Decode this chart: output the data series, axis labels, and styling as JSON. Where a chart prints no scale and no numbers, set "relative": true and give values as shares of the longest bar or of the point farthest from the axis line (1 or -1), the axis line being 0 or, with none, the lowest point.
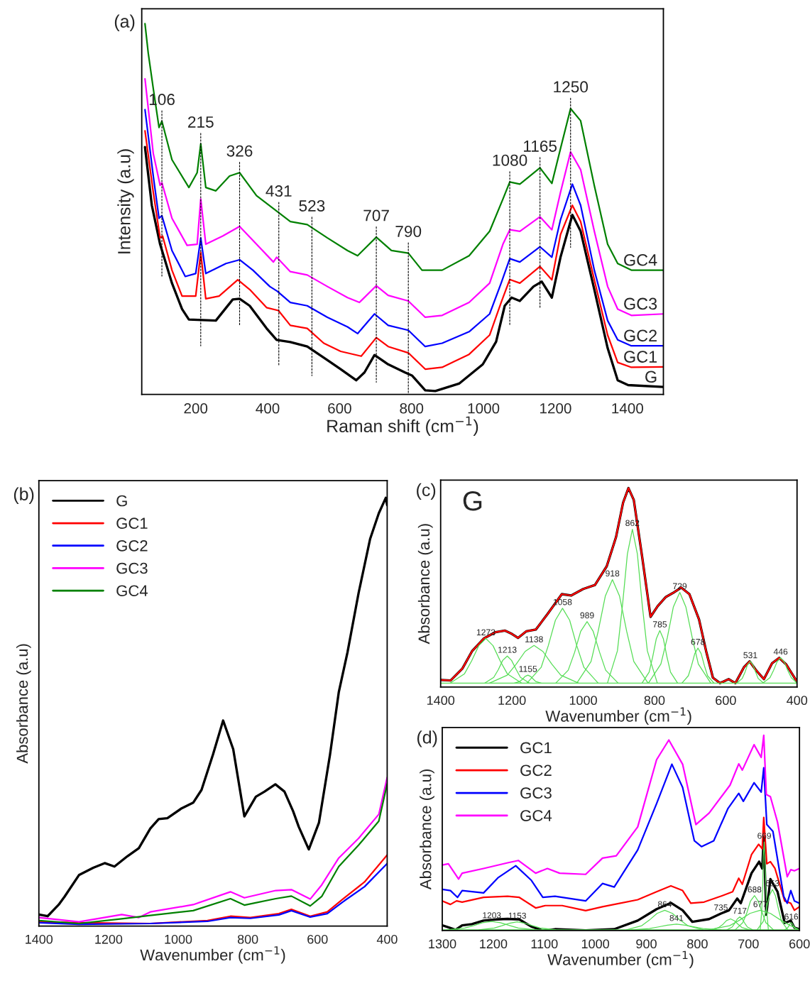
{
  "chart_data": [
    {
      "type": "line",
      "title": "(a)",
      "xlabel": "Raman shift (cm$^{−1}$)",
      "ylabel": "Intensity (a.u)",
      "relative": true,
      "tick_labels": "x",
      "xlim": [
        50,
        1500
      ],
      "xticks": [
        200,
        400,
        600,
        800,
        1000,
        1200,
        1400
      ],
      "legend": false,
      "series": [
        {
          "name": "G",
          "color": "#000000",
          "x": [
            59,
            78,
            101,
            134,
            162,
            181,
            256,
            303,
            322,
            350,
            397,
            425,
            463,
            510,
            556,
            603,
            646,
            669,
            697,
            735,
            782,
            801,
            838,
            866,
            932,
            998,
            1035,
            1059,
            1078,
            1101,
            1139,
            1162,
            1190,
            1214,
            1247,
            1270,
            1308,
            1345,
            1373,
            1402,
            1500
          ],
          "values": [
            0.667,
            0.51,
            0.405,
            0.3,
            0.23,
            0.202,
            0.199,
            0.256,
            0.258,
            0.239,
            0.178,
            0.147,
            0.141,
            0.129,
            0.099,
            0.068,
            0.038,
            0.059,
            0.106,
            0.081,
            0.059,
            0.051,
            0.011,
            0.009,
            0.029,
            0.081,
            0.142,
            0.239,
            0.261,
            0.252,
            0.291,
            0.304,
            0.261,
            0.37,
            0.484,
            0.44,
            0.283,
            0.125,
            0.038,
            0.025,
            0.02
          ]
        },
        {
          "name": "GC1",
          "color": "#ff0000",
          "x": [
            59,
            82,
            101,
            108,
            134,
            162,
            200,
            214,
            228,
            265,
            317,
            350,
            397,
            430,
            463,
            510,
            556,
            603,
            660,
            702,
            735,
            791,
            838,
            885,
            960,
            1017,
            1049,
            1073,
            1101,
            1157,
            1190,
            1214,
            1247,
            1270,
            1308,
            1345,
            1373,
            1411,
            1500
          ],
          "values": [
            0.711,
            0.545,
            0.422,
            0.427,
            0.335,
            0.265,
            0.265,
            0.383,
            0.258,
            0.265,
            0.309,
            0.283,
            0.234,
            0.226,
            0.186,
            0.178,
            0.138,
            0.116,
            0.103,
            0.153,
            0.129,
            0.112,
            0.068,
            0.073,
            0.108,
            0.16,
            0.248,
            0.31,
            0.3,
            0.345,
            0.309,
            0.431,
            0.51,
            0.466,
            0.309,
            0.16,
            0.086,
            0.073,
            0.074
          ]
        },
        {
          "name": "GC2",
          "color": "#0000ff",
          "x": [
            59,
            82,
            98,
            106,
            134,
            171,
            200,
            214,
            228,
            284,
            322,
            359,
            406,
            427,
            463,
            510,
            566,
            622,
            650,
            697,
            735,
            791,
            838,
            885,
            960,
            1017,
            1049,
            1073,
            1101,
            1157,
            1190,
            1214,
            1247,
            1270,
            1308,
            1345,
            1373,
            1411,
            1500
          ],
          "values": [
            0.768,
            0.589,
            0.475,
            0.482,
            0.388,
            0.318,
            0.326,
            0.422,
            0.326,
            0.353,
            0.363,
            0.335,
            0.291,
            0.278,
            0.248,
            0.239,
            0.208,
            0.182,
            0.164,
            0.217,
            0.186,
            0.173,
            0.129,
            0.138,
            0.169,
            0.217,
            0.3,
            0.366,
            0.357,
            0.398,
            0.37,
            0.471,
            0.567,
            0.51,
            0.335,
            0.199,
            0.147,
            0.131,
            0.131
          ]
        },
        {
          "name": "GC3",
          "color": "#ff00ff",
          "x": [
            59,
            82,
            101,
            106,
            134,
            176,
            204,
            214,
            228,
            275,
            322,
            369,
            416,
            425,
            463,
            510,
            566,
            622,
            655,
            702,
            735,
            791,
            838,
            885,
            960,
            1017,
            1054,
            1073,
            1101,
            1157,
            1190,
            1214,
            1242,
            1270,
            1308,
            1345,
            1373,
            1411,
            1500
          ],
          "values": [
            0.851,
            0.65,
            0.564,
            0.571,
            0.475,
            0.402,
            0.405,
            0.527,
            0.405,
            0.427,
            0.453,
            0.405,
            0.357,
            0.37,
            0.331,
            0.322,
            0.291,
            0.261,
            0.248,
            0.293,
            0.267,
            0.252,
            0.208,
            0.213,
            0.248,
            0.3,
            0.405,
            0.444,
            0.44,
            0.479,
            0.444,
            0.545,
            0.654,
            0.606,
            0.44,
            0.291,
            0.23,
            0.213,
            0.217
          ]
        },
        {
          "name": "GC4",
          "color": "#008000",
          "x": [
            59,
            68,
            82,
            98,
            106,
            134,
            181,
            204,
            214,
            228,
            256,
            294,
            322,
            369,
            416,
            463,
            510,
            566,
            622,
            650,
            702,
            744,
            791,
            829,
            885,
            960,
            1017,
            1054,
            1073,
            1101,
            1157,
            1190,
            1214,
            1242,
            1270,
            1308,
            1345,
            1373,
            1411,
            1500
          ],
          "values": [
            1.0,
            0.921,
            0.825,
            0.72,
            0.737,
            0.633,
            0.558,
            0.598,
            0.676,
            0.558,
            0.549,
            0.589,
            0.598,
            0.536,
            0.501,
            0.466,
            0.458,
            0.422,
            0.388,
            0.374,
            0.424,
            0.388,
            0.381,
            0.335,
            0.335,
            0.374,
            0.44,
            0.527,
            0.573,
            0.567,
            0.611,
            0.569,
            0.663,
            0.771,
            0.738,
            0.563,
            0.405,
            0.353,
            0.335,
            0.335
          ]
        }
      ],
      "annotations": [
        {
          "text": "106",
          "x": 106,
          "y": 0.737
        },
        {
          "text": "215",
          "x": 214,
          "y": 0.676
        },
        {
          "text": "326",
          "x": 322,
          "y": 0.598
        },
        {
          "text": "431",
          "x": 431,
          "y": 0.49
        },
        {
          "text": "523",
          "x": 523,
          "y": 0.45
        },
        {
          "text": "707",
          "x": 702,
          "y": 0.424
        },
        {
          "text": "790",
          "x": 791,
          "y": 0.381
        },
        {
          "text": "1080",
          "x": 1073,
          "y": 0.573
        },
        {
          "text": "1165",
          "x": 1157,
          "y": 0.611
        },
        {
          "text": "1250",
          "x": 1242,
          "y": 0.771
        }
      ]
    },
    {
      "type": "line",
      "title": "(b)",
      "xlabel": "Wavenumber (cm$^{−1}$)",
      "ylabel": "Absorbance (a.u)",
      "relative": true,
      "tick_labels": "x",
      "xlim": [
        1400,
        400
      ],
      "xticks": [
        1400,
        1200,
        1000,
        800,
        600,
        400
      ],
      "legend": "top left",
      "series": [
        {
          "name": "G",
          "color": "#000000",
          "x": [
            1400,
            1375,
            1343,
            1326,
            1285,
            1244,
            1211,
            1183,
            1146,
            1113,
            1080,
            1056,
            1031,
            990,
            957,
            933,
            900,
            871,
            842,
            810,
            777,
            752,
            721,
            695,
            670,
            654,
            625,
            596,
            564,
            539,
            514,
            482,
            449,
            424,
            404,
            400
          ],
          "values": [
            0.027,
            0.023,
            0.05,
            0.069,
            0.119,
            0.136,
            0.147,
            0.139,
            0.163,
            0.182,
            0.228,
            0.25,
            0.252,
            0.275,
            0.288,
            0.318,
            0.401,
            0.48,
            0.413,
            0.256,
            0.302,
            0.314,
            0.331,
            0.314,
            0.268,
            0.232,
            0.179,
            0.241,
            0.401,
            0.546,
            0.639,
            0.778,
            0.904,
            0.964,
            1.0,
            0.983
          ]
        },
        {
          "name": "GC1",
          "color": "#ff0000",
          "x": [
            1400,
            1285,
            1080,
            916,
            850,
            793,
            711,
            675,
            621,
            572,
            523,
            465,
            400
          ],
          "values": [
            0.01,
            0.008,
            0.006,
            0.013,
            0.023,
            0.02,
            0.029,
            0.039,
            0.023,
            0.033,
            0.066,
            0.103,
            0.166
          ]
        },
        {
          "name": "GC2",
          "color": "#0000ff",
          "x": [
            1400,
            1285,
            1080,
            916,
            850,
            793,
            711,
            675,
            621,
            572,
            523,
            465,
            400
          ],
          "values": [
            0.008,
            0.004,
            0.006,
            0.011,
            0.02,
            0.018,
            0.026,
            0.036,
            0.021,
            0.029,
            0.059,
            0.092,
            0.146
          ]
        },
        {
          "name": "GC3",
          "color": "#ff00ff",
          "x": [
            1400,
            1285,
            1162,
            1113,
            1080,
            957,
            850,
            810,
            720,
            675,
            621,
            588,
            539,
            482,
            424,
            400
          ],
          "values": [
            0.02,
            0.01,
            0.027,
            0.02,
            0.033,
            0.05,
            0.08,
            0.066,
            0.083,
            0.085,
            0.063,
            0.096,
            0.159,
            0.205,
            0.261,
            0.347
          ]
        },
        {
          "name": "GC4",
          "color": "#008000",
          "x": [
            1400,
            1285,
            1162,
            1080,
            957,
            850,
            810,
            720,
            675,
            621,
            588,
            539,
            482,
            424,
            400
          ],
          "values": [
            0.013,
            0.006,
            0.017,
            0.025,
            0.036,
            0.064,
            0.049,
            0.064,
            0.07,
            0.047,
            0.069,
            0.139,
            0.189,
            0.245,
            0.332
          ]
        }
      ]
    },
    {
      "type": "line",
      "title": "(c)",
      "xlabel": "Wavenumber (cm$^{−1}$)",
      "ylabel": "Absorbance (a.u)",
      "relative": true,
      "tick_labels": "x",
      "xlim": [
        1400,
        400
      ],
      "xticks": [
        1400,
        1200,
        1000,
        800,
        600,
        400
      ],
      "legend": false,
      "series": [
        {
          "color": "#000000",
          "x": [
            1400,
            1372,
            1339,
            1312,
            1279,
            1246,
            1220,
            1200,
            1183,
            1160,
            1133,
            1100,
            1060,
            1034,
            1000,
            967,
            934,
            908,
            888,
            873,
            858,
            835,
            811,
            791,
            768,
            748,
            725,
            702,
            675,
            655,
            636,
            616,
            592,
            573,
            549,
            533,
            516,
            493,
            470,
            450,
            430,
            400
          ],
          "values": [
            0.036,
            0.033,
            0.093,
            0.18,
            0.244,
            0.276,
            0.284,
            0.267,
            0.247,
            0.28,
            0.289,
            0.367,
            0.467,
            0.46,
            0.493,
            0.513,
            0.607,
            0.753,
            0.927,
            1.0,
            0.94,
            0.66,
            0.353,
            0.407,
            0.453,
            0.473,
            0.5,
            0.467,
            0.34,
            0.18,
            0.047,
            0.02,
            0.04,
            0.02,
            0.1,
            0.129,
            0.087,
            0.04,
            0.12,
            0.147,
            0.113,
            0.027
          ]
        },
        {
          "color": "#ff0000",
          "x": [
            1400,
            1372,
            1339,
            1312,
            1279,
            1246,
            1220,
            1200,
            1183,
            1160,
            1133,
            1100,
            1060,
            1034,
            1000,
            967,
            934,
            908,
            888,
            873,
            858,
            835,
            811,
            791,
            768,
            748,
            725,
            702,
            675,
            655,
            636,
            616,
            592,
            573,
            549,
            533,
            516,
            493,
            470,
            450,
            430,
            400
          ],
          "values": [
            0.036,
            0.033,
            0.093,
            0.18,
            0.244,
            0.276,
            0.284,
            0.267,
            0.247,
            0.28,
            0.289,
            0.367,
            0.467,
            0.46,
            0.493,
            0.513,
            0.607,
            0.753,
            0.927,
            1.0,
            0.94,
            0.66,
            0.353,
            0.407,
            0.453,
            0.473,
            0.5,
            0.467,
            0.34,
            0.18,
            0.047,
            0.02,
            0.04,
            0.02,
            0.1,
            0.129,
            0.087,
            0.04,
            0.12,
            0.147,
            0.113,
            0.027
          ]
        },
        {
          "color": "#55dd55",
          "x": [
            1400,
            400
          ],
          "values": [
            0.02,
            0.02
          ]
        },
        {
          "color": "#55dd55",
          "x": [
            1173,
            1213,
            1233,
            1253,
            1273,
            1293,
            1313,
            1333,
            1373
          ],
          "values": [
            0.02,
            0.067,
            0.132,
            0.208,
            0.244,
            0.208,
            0.132,
            0.067,
            0.02
          ]
        },
        {
          "color": "#55dd55",
          "x": [
            1151,
            1176,
            1188,
            1201,
            1213,
            1226,
            1238,
            1251,
            1276
          ],
          "values": [
            0.02,
            0.049,
            0.088,
            0.134,
            0.156,
            0.134,
            0.088,
            0.049,
            0.02
          ]
        },
        {
          "color": "#55dd55",
          "x": [
            1118,
            1133,
            1140,
            1148,
            1155,
            1163,
            1170,
            1178,
            1193
          ],
          "values": [
            0.02,
            0.028,
            0.04,
            0.054,
            0.06,
            0.054,
            0.04,
            0.028,
            0.02
          ]
        },
        {
          "color": "#55dd55",
          "x": [
            1013,
            1063,
            1088,
            1113,
            1138,
            1163,
            1188,
            1213,
            1263
          ],
          "values": [
            0.02,
            0.06,
            0.115,
            0.179,
            0.209,
            0.179,
            0.115,
            0.06,
            0.02
          ]
        },
        {
          "color": "#55dd55",
          "x": [
            958,
            998,
            1018,
            1038,
            1058,
            1078,
            1098,
            1118,
            1158
          ],
          "values": [
            0.02,
            0.099,
            0.208,
            0.336,
            0.396,
            0.336,
            0.208,
            0.099,
            0.02
          ]
        },
        {
          "color": "#55dd55",
          "x": [
            902,
            937,
            954,
            972,
            989,
            1007,
            1024,
            1042,
            1077
          ],
          "values": [
            0.02,
            0.085,
            0.175,
            0.28,
            0.329,
            0.28,
            0.175,
            0.085,
            0.02
          ]
        },
        {
          "color": "#55dd55",
          "x": [
            818,
            858,
            878,
            898,
            918,
            938,
            958,
            978,
            1018
          ],
          "values": [
            0.02,
            0.129,
            0.28,
            0.457,
            0.54,
            0.457,
            0.28,
            0.129,
            0.02
          ]
        },
        {
          "color": "#55dd55",
          "x": [
            792,
            820,
            834,
            848,
            862,
            876,
            890,
            904,
            932
          ],
          "values": [
            0.02,
            0.182,
            0.407,
            0.669,
            0.793,
            0.669,
            0.407,
            0.182,
            0.02
          ]
        },
        {
          "color": "#55dd55",
          "x": [
            735,
            755,
            765,
            775,
            785,
            795,
            805,
            815,
            835
          ],
          "values": [
            0.02,
            0.075,
            0.152,
            0.242,
            0.284,
            0.242,
            0.152,
            0.075,
            0.02
          ]
        },
        {
          "color": "#55dd55",
          "x": [
            642,
            677,
            694,
            712,
            729,
            747,
            764,
            782,
            817
          ],
          "values": [
            0.02,
            0.116,
            0.248,
            0.403,
            0.476,
            0.403,
            0.248,
            0.116,
            0.02
          ]
        },
        {
          "color": "#55dd55",
          "x": [
            633,
            651,
            660,
            669,
            678,
            687,
            696,
            705,
            723
          ],
          "values": [
            0.02,
            0.057,
            0.108,
            0.168,
            0.196,
            0.168,
            0.108,
            0.057,
            0.02
          ]
        },
        {
          "color": "#55dd55",
          "x": [
            494,
            509,
            516,
            524,
            531,
            539,
            546,
            554,
            569
          ],
          "values": [
            0.02,
            0.043,
            0.075,
            0.112,
            0.129,
            0.112,
            0.075,
            0.043,
            0.02
          ]
        },
        {
          "color": "#55dd55",
          "x": [
            400,
            416,
            426,
            436,
            446,
            456,
            466,
            476,
            496
          ],
          "values": [
            0.02,
            0.047,
            0.084,
            0.127,
            0.147,
            0.127,
            0.084,
            0.047,
            0.02
          ]
        }
      ],
      "annotations": [
        "G",
        {
          "text": "1273",
          "x": 1273,
          "y": 0.244
        },
        {
          "text": "1213",
          "x": 1213,
          "y": 0.156
        },
        {
          "text": "1138",
          "x": 1138,
          "y": 0.209
        },
        {
          "text": "1155",
          "x": 1155,
          "y": 0.06
        },
        {
          "text": "1058",
          "x": 1058,
          "y": 0.396
        },
        {
          "text": "989",
          "x": 989,
          "y": 0.329
        },
        {
          "text": "918",
          "x": 918,
          "y": 0.54
        },
        {
          "text": "862",
          "x": 862,
          "y": 0.793
        },
        {
          "text": "785",
          "x": 785,
          "y": 0.284
        },
        {
          "text": "729",
          "x": 729,
          "y": 0.476
        },
        {
          "text": "678",
          "x": 678,
          "y": 0.196
        },
        {
          "text": "531",
          "x": 531,
          "y": 0.129
        },
        {
          "text": "446",
          "x": 446,
          "y": 0.147
        }
      ]
    },
    {
      "type": "line",
      "title": "(d)",
      "xlabel": "Wavenumber (cm$^{−1}$)",
      "ylabel": "Absorbance (a.u)",
      "relative": true,
      "tick_labels": "x",
      "xlim": [
        1300,
        600
      ],
      "xticks": [
        1300,
        1200,
        1100,
        1000,
        900,
        800,
        700,
        600
      ],
      "legend": "top left",
      "series": [
        {
          "name": "GC1",
          "color": "#000000",
          "x": [
            1300,
            1286,
            1274,
            1261,
            1242,
            1219,
            1195,
            1172,
            1149,
            1126,
            1103,
            1079,
            1019,
            963,
            917,
            880,
            852,
            829,
            810,
            777,
            754,
            738,
            722,
            715,
            694,
            679,
            673,
            670,
            665,
            657,
            643,
            629,
            617,
            610,
            600
          ],
          "values": [
            0.027,
            0.015,
            0.004,
            0.027,
            0.033,
            0.051,
            0.057,
            0.06,
            0.057,
            0.021,
            0.0,
            0.007,
            0.001,
            0.007,
            0.051,
            0.11,
            0.142,
            0.104,
            0.045,
            0.059,
            0.087,
            0.104,
            0.164,
            0.14,
            0.294,
            0.353,
            0.318,
            0.478,
            0.081,
            0.264,
            0.199,
            0.039,
            0.051,
            0.015,
            0.007
          ]
        },
        {
          "name": "GC2",
          "color": "#ff0000",
          "x": [
            1300,
            1284,
            1272,
            1261,
            1219,
            1172,
            1149,
            1117,
            1098,
            1065,
            1019,
            986,
            917,
            880,
            852,
            829,
            813,
            787,
            754,
            731,
            719,
            712,
            694,
            680,
            673,
            670,
            664,
            657,
            648,
            629,
            617,
            610,
            600
          ],
          "values": [
            0.152,
            0.134,
            0.152,
            0.146,
            0.17,
            0.176,
            0.17,
            0.116,
            0.128,
            0.128,
            0.102,
            0.122,
            0.158,
            0.199,
            0.229,
            0.205,
            0.14,
            0.146,
            0.176,
            0.199,
            0.268,
            0.237,
            0.389,
            0.442,
            0.419,
            0.579,
            0.342,
            0.353,
            0.318,
            0.152,
            0.14,
            0.104,
            0.122
          ]
        },
        {
          "name": "GC3",
          "color": "#0000ff",
          "x": [
            1300,
            1284,
            1270,
            1261,
            1219,
            1191,
            1156,
            1126,
            1103,
            1079,
            1019,
            986,
            963,
            917,
            880,
            850,
            829,
            806,
            792,
            768,
            740,
            719,
            710,
            689,
            675,
            670,
            664,
            652,
            631,
            624,
            617,
            610,
            600
          ],
          "values": [
            0.211,
            0.205,
            0.17,
            0.205,
            0.193,
            0.27,
            0.332,
            0.259,
            0.17,
            0.176,
            0.152,
            0.241,
            0.223,
            0.413,
            0.65,
            0.852,
            0.733,
            0.46,
            0.43,
            0.46,
            0.626,
            0.703,
            0.662,
            0.757,
            0.709,
            0.834,
            0.543,
            0.508,
            0.176,
            0.14,
            0.205,
            0.152,
            0.14
          ]
        },
        {
          "name": "GC4",
          "color": "#ff00ff",
          "x": [
            1300,
            1288,
            1268,
            1261,
            1219,
            1172,
            1151,
            1117,
            1094,
            1070,
            1019,
            986,
            959,
            917,
            880,
            856,
            829,
            803,
            777,
            736,
            719,
            712,
            689,
            675,
            670,
            665,
            657,
            643,
            624,
            617,
            610,
            600
          ],
          "values": [
            0.336,
            0.342,
            0.264,
            0.294,
            0.318,
            0.347,
            0.359,
            0.294,
            0.318,
            0.294,
            0.288,
            0.371,
            0.383,
            0.531,
            0.875,
            0.976,
            0.852,
            0.543,
            0.602,
            0.745,
            0.854,
            0.822,
            0.952,
            0.887,
            1.0,
            0.697,
            0.686,
            0.555,
            0.276,
            0.312,
            0.306,
            0.318
          ]
        },
        {
          "color": "#55dd55",
          "x": [
            1300,
            600
          ],
          "values": [
            0.004,
            0.004
          ]
        },
        {
          "color": "#55dd55",
          "x": [
            1116,
            1151,
            1168,
            1186,
            1203,
            1221,
            1238,
            1256,
            1291
          ],
          "values": [
            0.004,
            0.013,
            0.026,
            0.04,
            0.047,
            0.04,
            0.026,
            0.013,
            0.004
          ]
        },
        {
          "color": "#55dd55",
          "x": [
            1078,
            1108,
            1123,
            1138,
            1153,
            1168,
            1183,
            1198,
            1228
          ],
          "values": [
            0.004,
            0.013,
            0.025,
            0.038,
            0.045,
            0.038,
            0.025,
            0.013,
            0.004
          ]
        },
        {
          "color": "#55dd55",
          "x": [
            789,
            819,
            834,
            849,
            864,
            879,
            894,
            909,
            939
          ],
          "values": [
            0.004,
            0.025,
            0.054,
            0.088,
            0.104,
            0.088,
            0.054,
            0.025,
            0.004
          ]
        },
        {
          "color": "#55dd55",
          "x": [
            754,
            789,
            806,
            824,
            841,
            859,
            876,
            894,
            929
          ],
          "values": [
            0.004,
            0.01,
            0.019,
            0.028,
            0.033,
            0.028,
            0.019,
            0.01,
            0.004
          ]
        },
        {
          "color": "#55dd55",
          "x": [
            698,
            713,
            720,
            728,
            735,
            743,
            750,
            758,
            773
          ],
          "values": [
            0.004,
            0.016,
            0.032,
            0.051,
            0.06,
            0.051,
            0.032,
            0.016,
            0.004
          ]
        },
        {
          "color": "#55dd55",
          "x": [
            692,
            702,
            707,
            712,
            717,
            722,
            727,
            732,
            742
          ],
          "values": [
            0.004,
            0.018,
            0.037,
            0.059,
            0.07,
            0.059,
            0.037,
            0.018,
            0.004
          ]
        },
        {
          "color": "#55dd55",
          "x": [
            651,
            666,
            673,
            681,
            688,
            696,
            703,
            711,
            726
          ],
          "values": [
            0.004,
            0.041,
            0.092,
            0.151,
            0.179,
            0.151,
            0.092,
            0.041,
            0.004
          ]
        },
        {
          "color": "#55dd55",
          "x": [
            600,
            617,
            637,
            657,
            677,
            697,
            717,
            737,
            777
          ],
          "values": [
            0.004,
            0.025,
            0.054,
            0.088,
            0.104,
            0.088,
            0.054,
            0.025,
            0.004
          ]
        },
        {
          "color": "#55dd55",
          "x": [
            661,
            664,
            666,
            668,
            669,
            671,
            672,
            674,
            677
          ],
          "values": [
            0.004,
            0.099,
            0.229,
            0.382,
            0.454,
            0.382,
            0.229,
            0.099,
            0.004
          ]
        },
        {
          "color": "#55dd55",
          "x": [
            623,
            635,
            641,
            647,
            653,
            659,
            665,
            671,
            683
          ],
          "values": [
            0.004,
            0.047,
            0.108,
            0.178,
            0.211,
            0.178,
            0.108,
            0.047,
            0.004
          ]
        },
        {
          "color": "#55dd55",
          "x": [
            604,
            609,
            611,
            614,
            616,
            619,
            621,
            624,
            629
          ],
          "values": [
            0.004,
            0.012,
            0.022,
            0.034,
            0.04,
            0.034,
            0.022,
            0.012,
            0.004
          ]
        }
      ],
      "annotations": [
        {
          "text": "1203",
          "x": 1203,
          "y": 0.047
        },
        {
          "text": "1153",
          "x": 1153,
          "y": 0.045
        },
        {
          "text": "864",
          "x": 864,
          "y": 0.104
        },
        {
          "text": "841",
          "x": 841,
          "y": 0.033
        },
        {
          "text": "735",
          "x": 754,
          "y": 0.087
        },
        {
          "text": "717",
          "x": 717,
          "y": 0.07
        },
        {
          "text": "688",
          "x": 688,
          "y": 0.179
        },
        {
          "text": "677",
          "x": 677,
          "y": 0.104
        },
        {
          "text": "669",
          "x": 669,
          "y": 0.454
        },
        {
          "text": "653",
          "x": 653,
          "y": 0.211
        },
        {
          "text": "616",
          "x": 616,
          "y": 0.04
        }
      ]
    }
  ]
}
